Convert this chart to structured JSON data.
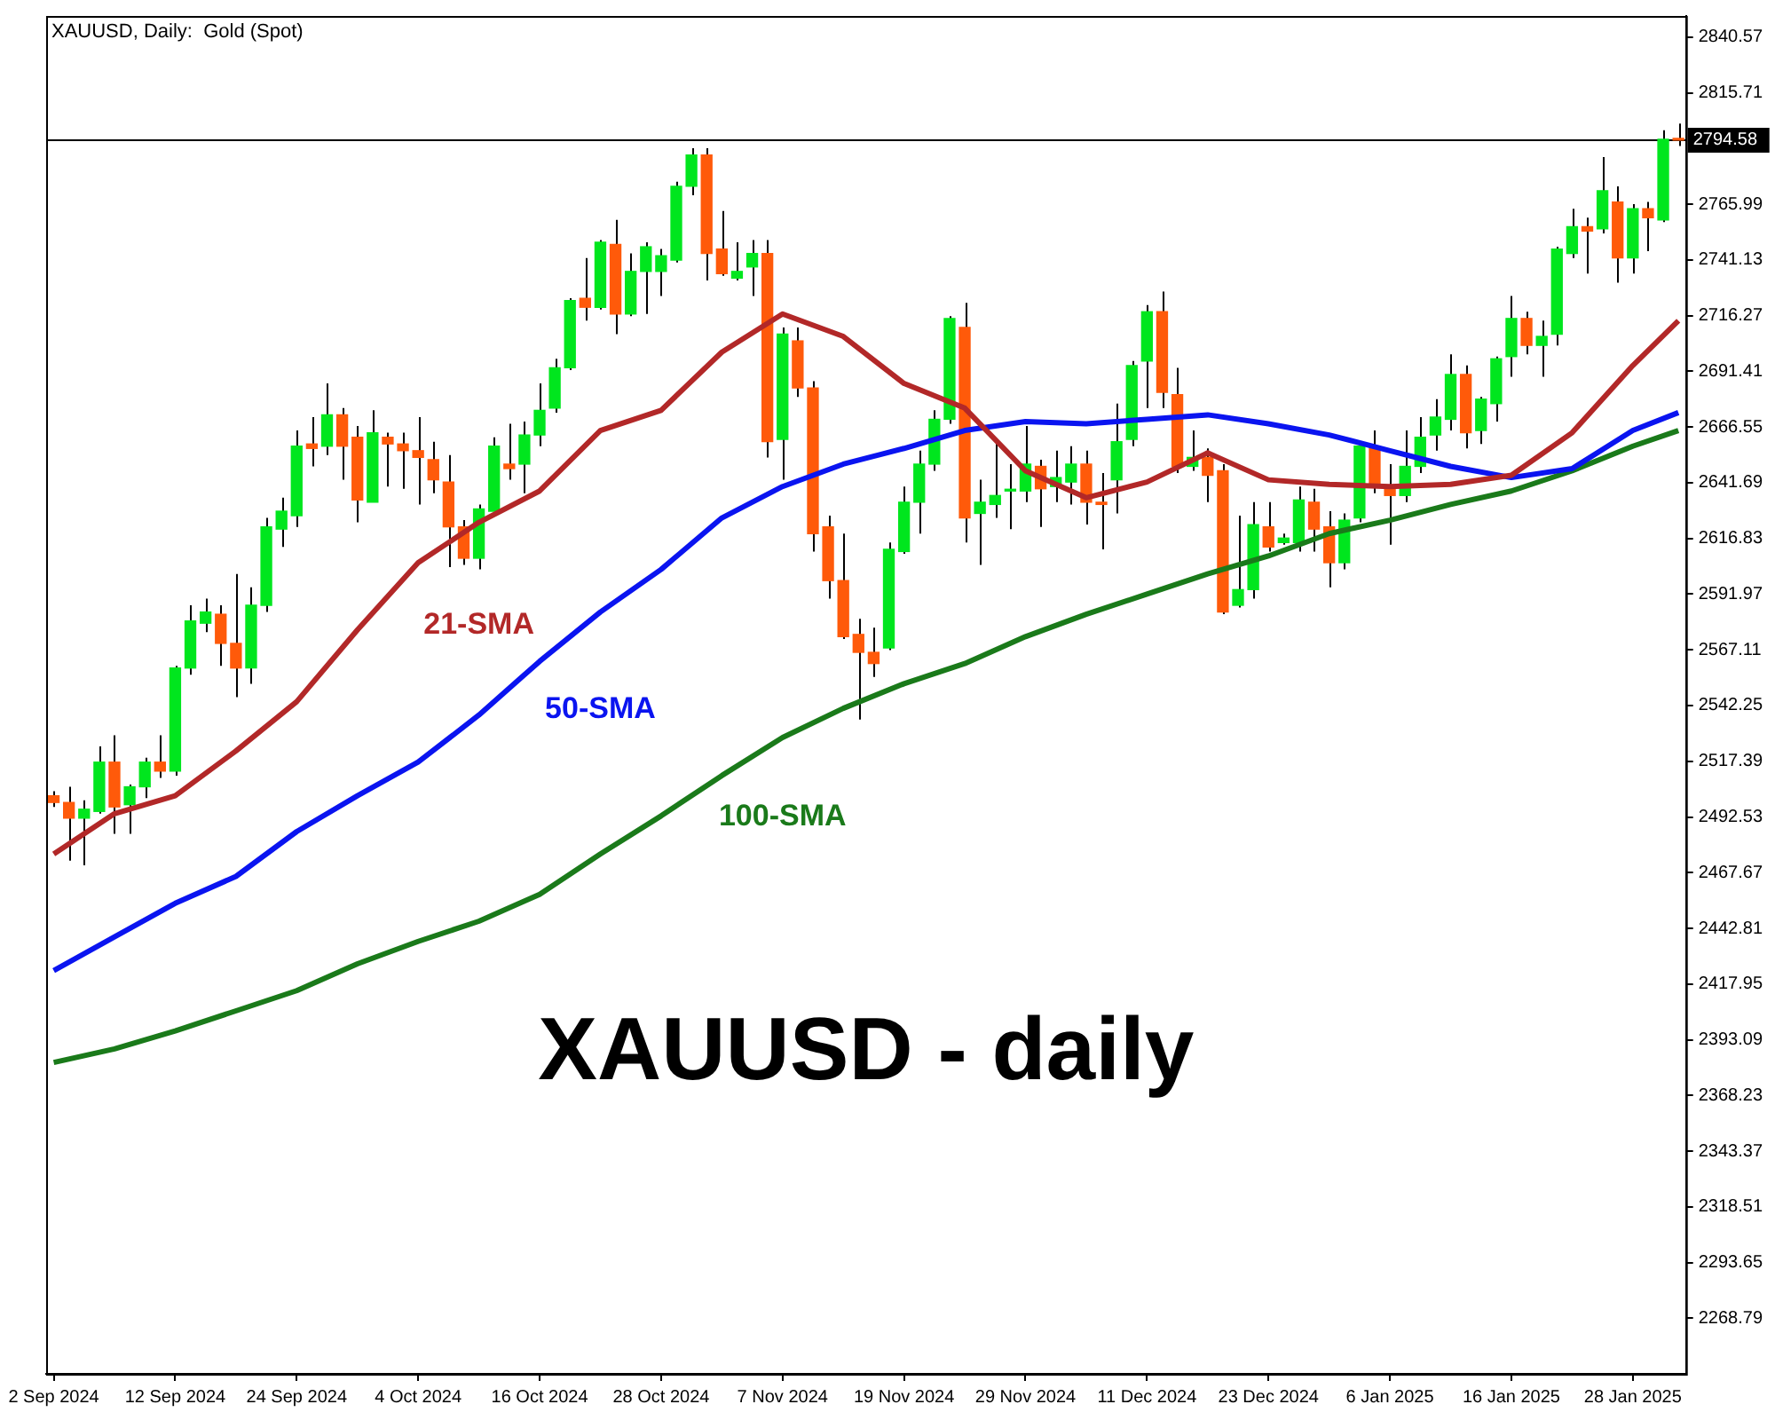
{
  "chart_data": {
    "type": "candlestick",
    "title": "XAUUSD, Daily:  Gold (Spot)",
    "categories": [
      "2 Sep 2024",
      null,
      null,
      null,
      null,
      null,
      null,
      null,
      "12 Sep 2024",
      null,
      null,
      null,
      null,
      null,
      null,
      null,
      "24 Sep 2024",
      null,
      null,
      null,
      null,
      null,
      null,
      null,
      "4 Oct 2024",
      null,
      null,
      null,
      null,
      null,
      null,
      null,
      "16 Oct 2024",
      null,
      null,
      null,
      null,
      null,
      null,
      null,
      "28 Oct 2024",
      null,
      null,
      null,
      null,
      null,
      null,
      null,
      "7 Nov 2024",
      null,
      null,
      null,
      null,
      null,
      null,
      null,
      "19 Nov 2024",
      null,
      null,
      null,
      null,
      null,
      null,
      null,
      "29 Nov 2024",
      null,
      null,
      null,
      null,
      null,
      null,
      null,
      "11 Dec 2024",
      null,
      null,
      null,
      null,
      null,
      null,
      null,
      "23 Dec 2024",
      null,
      null,
      null,
      null,
      null,
      null,
      null,
      "6 Jan 2025",
      null,
      null,
      null,
      null,
      null,
      null,
      null,
      "16 Jan 2025",
      null,
      null,
      null,
      null,
      null,
      null,
      null,
      "28 Jan 2025",
      null,
      null,
      null
    ],
    "ohlc": [
      [
        2502,
        2504,
        2497,
        2499
      ],
      [
        2499,
        2506,
        2473,
        2492
      ],
      [
        2492,
        2500,
        2471,
        2496
      ],
      [
        2495,
        2524,
        2494,
        2517
      ],
      [
        2517,
        2529,
        2485,
        2497
      ],
      [
        2498,
        2507,
        2485,
        2506
      ],
      [
        2506,
        2519,
        2501,
        2517
      ],
      [
        2517,
        2529,
        2510,
        2513
      ],
      [
        2513,
        2560,
        2511,
        2559
      ],
      [
        2559,
        2587,
        2556,
        2580
      ],
      [
        2579,
        2590,
        2575,
        2584
      ],
      [
        2583,
        2587,
        2560,
        2570
      ],
      [
        2570,
        2601,
        2546,
        2559
      ],
      [
        2559,
        2595,
        2552,
        2587
      ],
      [
        2587,
        2626,
        2584,
        2622
      ],
      [
        2621,
        2635,
        2613,
        2629
      ],
      [
        2627,
        2665,
        2622,
        2658
      ],
      [
        2659,
        2671,
        2649,
        2657
      ],
      [
        2658,
        2686,
        2654,
        2672
      ],
      [
        2672,
        2675,
        2643,
        2658
      ],
      [
        2662,
        2667,
        2624,
        2634
      ],
      [
        2633,
        2674,
        2633,
        2664
      ],
      [
        2662,
        2664,
        2640,
        2659
      ],
      [
        2659,
        2664,
        2639,
        2656
      ],
      [
        2656,
        2671,
        2632,
        2653
      ],
      [
        2652,
        2660,
        2637,
        2643
      ],
      [
        2642,
        2654,
        2604,
        2622
      ],
      [
        2622,
        2625,
        2605,
        2608
      ],
      [
        2608,
        2632,
        2603,
        2630
      ],
      [
        2629,
        2662,
        2629,
        2658
      ],
      [
        2650,
        2668,
        2643,
        2648
      ],
      [
        2650,
        2669,
        2637,
        2663
      ],
      [
        2663,
        2686,
        2658,
        2674
      ],
      [
        2675,
        2697,
        2673,
        2693
      ],
      [
        2693,
        2724,
        2692,
        2723
      ],
      [
        2724,
        2742,
        2714,
        2720
      ],
      [
        2720,
        2750,
        2719,
        2749
      ],
      [
        2748,
        2759,
        2708,
        2717
      ],
      [
        2717,
        2744,
        2716,
        2736
      ],
      [
        2736,
        2749,
        2717,
        2747
      ],
      [
        2736,
        2746,
        2725,
        2743
      ],
      [
        2741,
        2776,
        2740,
        2774
      ],
      [
        2774,
        2791,
        2770,
        2788
      ],
      [
        2788,
        2791,
        2732,
        2744
      ],
      [
        2746,
        2763,
        2734,
        2735
      ],
      [
        2733,
        2749,
        2732,
        2736
      ],
      [
        2738,
        2750,
        2725,
        2744
      ],
      [
        2744,
        2750,
        2653,
        2660
      ],
      [
        2661,
        2711,
        2643,
        2708
      ],
      [
        2705,
        2711,
        2680,
        2684
      ],
      [
        2684,
        2687,
        2611,
        2619
      ],
      [
        2622,
        2627,
        2590,
        2598
      ],
      [
        2598,
        2619,
        2572,
        2573
      ],
      [
        2574,
        2581,
        2536,
        2566
      ],
      [
        2566,
        2577,
        2555,
        2561
      ],
      [
        2568,
        2615,
        2567,
        2612
      ],
      [
        2611,
        2640,
        2610,
        2633
      ],
      [
        2633,
        2656,
        2619,
        2650
      ],
      [
        2650,
        2674,
        2647,
        2670
      ],
      [
        2670,
        2716,
        2668,
        2715
      ],
      [
        2711,
        2722,
        2615,
        2626
      ],
      [
        2628,
        2643,
        2605,
        2633
      ],
      [
        2632,
        2660,
        2626,
        2636
      ],
      [
        2638,
        2650,
        2621,
        2638
      ],
      [
        2638,
        2667,
        2633,
        2650
      ],
      [
        2649,
        2652,
        2622,
        2639
      ],
      [
        2640,
        2656,
        2633,
        2644
      ],
      [
        2642,
        2658,
        2632,
        2650
      ],
      [
        2650,
        2656,
        2623,
        2633
      ],
      [
        2633,
        2646,
        2612,
        2632
      ],
      [
        2643,
        2677,
        2628,
        2660
      ],
      [
        2661,
        2696,
        2658,
        2694
      ],
      [
        2696,
        2721,
        2675,
        2718
      ],
      [
        2718,
        2727,
        2675,
        2682
      ],
      [
        2681,
        2693,
        2646,
        2649
      ],
      [
        2649,
        2665,
        2647,
        2653
      ],
      [
        2653,
        2657,
        2633,
        2645
      ],
      [
        2647,
        2650,
        2583,
        2584
      ],
      [
        2587,
        2627,
        2586,
        2594
      ],
      [
        2594,
        2633,
        2590,
        2623
      ],
      [
        2622,
        2633,
        2611,
        2613
      ],
      [
        2615,
        2619,
        2614,
        2617
      ],
      [
        2615,
        2640,
        2611,
        2634
      ],
      [
        2633,
        2639,
        2611,
        2621
      ],
      [
        2622,
        2629,
        2595,
        2606
      ],
      [
        2606,
        2628,
        2603,
        2625
      ],
      [
        2626,
        2660,
        2624,
        2658
      ],
      [
        2658,
        2665,
        2637,
        2640
      ],
      [
        2640,
        2650,
        2614,
        2636
      ],
      [
        2636,
        2665,
        2633,
        2649
      ],
      [
        2649,
        2671,
        2646,
        2662
      ],
      [
        2663,
        2679,
        2656,
        2671
      ],
      [
        2670,
        2699,
        2665,
        2690
      ],
      [
        2690,
        2694,
        2657,
        2664
      ],
      [
        2665,
        2680,
        2659,
        2679
      ],
      [
        2677,
        2698,
        2669,
        2697
      ],
      [
        2698,
        2725,
        2689,
        2715
      ],
      [
        2715,
        2718,
        2699,
        2703
      ],
      [
        2703,
        2714,
        2689,
        2707
      ],
      [
        2708,
        2747,
        2703,
        2746
      ],
      [
        2744,
        2764,
        2742,
        2756
      ],
      [
        2756,
        2760,
        2735,
        2754
      ],
      [
        2755,
        2787,
        2753,
        2772
      ],
      [
        2767,
        2774,
        2731,
        2742
      ],
      [
        2742,
        2766,
        2735,
        2764
      ],
      [
        2764,
        2767,
        2745,
        2760
      ],
      [
        2759,
        2799,
        2758,
        2795
      ],
      [
        2795,
        2802,
        2792,
        2794.58
      ]
    ],
    "colors": [
      "#ff5a0a",
      "#ff5a0a",
      "#00e61e",
      "#00e61e",
      "#ff5a0a",
      "#00e61e",
      "#00e61e",
      "#ff5a0a",
      "#00e61e",
      "#00e61e",
      "#00e61e",
      "#ff5a0a",
      "#ff5a0a",
      "#00e61e",
      "#00e61e",
      "#00e61e",
      "#00e61e",
      "#ff5a0a",
      "#00e61e",
      "#ff5a0a",
      "#ff5a0a",
      "#00e61e",
      "#ff5a0a",
      "#ff5a0a",
      "#ff5a0a",
      "#ff5a0a",
      "#ff5a0a",
      "#ff5a0a",
      "#00e61e",
      "#00e61e",
      "#ff5a0a",
      "#00e61e",
      "#00e61e",
      "#00e61e",
      "#00e61e",
      "#ff5a0a",
      "#00e61e",
      "#ff5a0a",
      "#00e61e",
      "#00e61e",
      "#00e61e",
      "#00e61e",
      "#00e61e",
      "#ff5a0a",
      "#ff5a0a",
      "#00e61e",
      "#00e61e",
      "#ff5a0a",
      "#00e61e",
      "#ff5a0a",
      "#ff5a0a",
      "#ff5a0a",
      "#ff5a0a",
      "#ff5a0a",
      "#ff5a0a",
      "#00e61e",
      "#00e61e",
      "#00e61e",
      "#00e61e",
      "#00e61e",
      "#ff5a0a",
      "#00e61e",
      "#00e61e",
      "#00e61e",
      "#00e61e",
      "#ff5a0a",
      "#00e61e",
      "#00e61e",
      "#ff5a0a",
      "#ff5a0a",
      "#00e61e",
      "#00e61e",
      "#00e61e",
      "#ff5a0a",
      "#ff5a0a",
      "#00e61e",
      "#ff5a0a",
      "#ff5a0a",
      "#00e61e",
      "#00e61e",
      "#ff5a0a",
      "#00e61e",
      "#00e61e",
      "#ff5a0a",
      "#ff5a0a",
      "#00e61e",
      "#00e61e",
      "#ff5a0a",
      "#ff5a0a",
      "#00e61e",
      "#00e61e",
      "#00e61e",
      "#00e61e",
      "#ff5a0a",
      "#00e61e",
      "#00e61e",
      "#00e61e",
      "#ff5a0a",
      "#00e61e",
      "#00e61e",
      "#00e61e",
      "#ff5a0a",
      "#00e61e",
      "#ff5a0a",
      "#00e61e",
      "#ff5a0a",
      "#00e61e",
      "#ff5a0a"
    ],
    "series": [
      {
        "type": "line",
        "name": "21-SMA",
        "color": "#b22828",
        "values": [
          2476,
          null,
          null,
          null,
          2494,
          null,
          null,
          null,
          2502,
          null,
          null,
          null,
          2522,
          null,
          null,
          null,
          2544,
          null,
          null,
          null,
          2576,
          null,
          null,
          null,
          2606,
          null,
          null,
          null,
          2624,
          null,
          null,
          null,
          2638,
          null,
          null,
          null,
          2665,
          null,
          null,
          null,
          2674,
          null,
          null,
          null,
          2700,
          null,
          null,
          null,
          2717,
          null,
          null,
          null,
          2707,
          null,
          null,
          null,
          2686,
          null,
          null,
          null,
          2675,
          null,
          null,
          null,
          2647,
          null,
          null,
          null,
          2635,
          null,
          null,
          null,
          2642,
          null,
          null,
          null,
          2655,
          null,
          null,
          null,
          2643,
          null,
          null,
          null,
          2641,
          null,
          null,
          null,
          2640,
          null,
          null,
          null,
          2641,
          null,
          null,
          null,
          2645,
          null,
          null,
          null,
          2664,
          null,
          null,
          null,
          2694,
          null,
          null,
          2714
        ]
      },
      {
        "type": "line",
        "name": "50-SMA",
        "color": "#0a14f0",
        "values": [
          2424,
          null,
          null,
          null,
          2439,
          null,
          null,
          null,
          2454,
          null,
          null,
          null,
          2466,
          null,
          null,
          null,
          2486,
          null,
          null,
          null,
          2502,
          null,
          null,
          null,
          2517,
          null,
          null,
          null,
          2538,
          null,
          null,
          null,
          2562,
          null,
          null,
          null,
          2584,
          null,
          null,
          null,
          2603,
          null,
          null,
          null,
          2626,
          null,
          null,
          null,
          2640,
          null,
          null,
          null,
          2650,
          null,
          null,
          null,
          2657,
          null,
          null,
          null,
          2665,
          null,
          null,
          null,
          2669,
          null,
          null,
          null,
          2668,
          null,
          null,
          null,
          2670,
          null,
          null,
          null,
          2672,
          null,
          null,
          null,
          2668,
          null,
          null,
          null,
          2663,
          null,
          null,
          null,
          2656,
          null,
          null,
          null,
          2649,
          null,
          null,
          null,
          2644,
          null,
          null,
          null,
          2648,
          null,
          null,
          null,
          2665,
          null,
          null,
          2673
        ]
      },
      {
        "type": "line",
        "name": "100-SMA",
        "color": "#1a7a1a",
        "values": [
          2383,
          null,
          null,
          null,
          2389,
          null,
          null,
          null,
          2397,
          null,
          null,
          null,
          2406,
          null,
          null,
          null,
          2415,
          null,
          null,
          null,
          2427,
          null,
          null,
          null,
          2437,
          null,
          null,
          null,
          2446,
          null,
          null,
          null,
          2458,
          null,
          null,
          null,
          2476,
          null,
          null,
          null,
          2493,
          null,
          null,
          null,
          2511,
          null,
          null,
          null,
          2528,
          null,
          null,
          null,
          2541,
          null,
          null,
          null,
          2552,
          null,
          null,
          null,
          2561,
          null,
          null,
          null,
          2573,
          null,
          null,
          null,
          2583,
          null,
          null,
          null,
          2592,
          null,
          null,
          null,
          2601,
          null,
          null,
          null,
          2609,
          null,
          null,
          null,
          2619,
          null,
          null,
          null,
          2625,
          null,
          null,
          null,
          2632,
          null,
          null,
          null,
          2638,
          null,
          null,
          null,
          2647,
          null,
          null,
          null,
          2658,
          null,
          null,
          2665
        ]
      }
    ],
    "ylim": [
      2244,
      2850
    ],
    "yticks": [
      2268.79,
      2293.65,
      2318.51,
      2343.37,
      2368.23,
      2393.09,
      2417.95,
      2442.81,
      2467.67,
      2492.53,
      2517.39,
      2542.25,
      2567.11,
      2591.97,
      2616.83,
      2641.69,
      2666.55,
      2691.41,
      2716.27,
      2741.13,
      2765.99,
      2815.71,
      2840.57
    ],
    "ref_lines": [
      {
        "axis": "y",
        "value": 2794.58,
        "label": "2794.58",
        "color": "#000000"
      }
    ],
    "annotations": [
      "XAUUSD - daily"
    ]
  }
}
